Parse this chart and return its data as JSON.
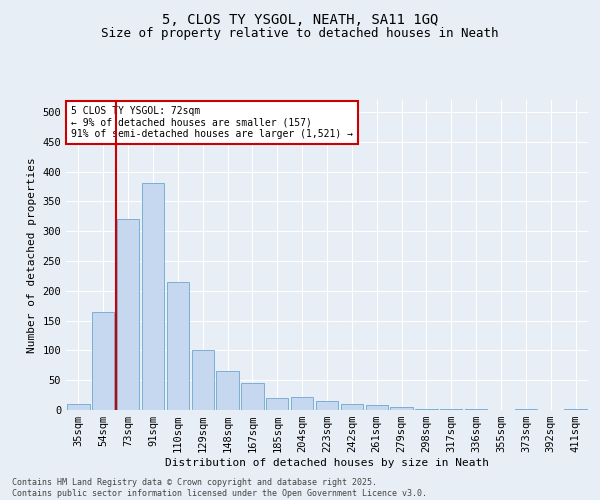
{
  "title_line1": "5, CLOS TY YSGOL, NEATH, SA11 1GQ",
  "title_line2": "Size of property relative to detached houses in Neath",
  "xlabel": "Distribution of detached houses by size in Neath",
  "ylabel": "Number of detached properties",
  "categories": [
    "35sqm",
    "54sqm",
    "73sqm",
    "91sqm",
    "110sqm",
    "129sqm",
    "148sqm",
    "167sqm",
    "185sqm",
    "204sqm",
    "223sqm",
    "242sqm",
    "261sqm",
    "279sqm",
    "298sqm",
    "317sqm",
    "336sqm",
    "355sqm",
    "373sqm",
    "392sqm",
    "411sqm"
  ],
  "values": [
    10,
    165,
    320,
    380,
    215,
    100,
    65,
    45,
    20,
    22,
    15,
    10,
    8,
    5,
    2,
    2,
    1,
    0,
    1,
    0,
    1
  ],
  "bar_color": "#c5d8ef",
  "bar_edge_color": "#7aafd4",
  "vline_x_index": 2,
  "vline_color": "#cc0000",
  "annotation_text": "5 CLOS TY YSGOL: 72sqm\n← 9% of detached houses are smaller (157)\n91% of semi-detached houses are larger (1,521) →",
  "annotation_box_color": "#ffffff",
  "annotation_border_color": "#cc0000",
  "footer_text": "Contains HM Land Registry data © Crown copyright and database right 2025.\nContains public sector information licensed under the Open Government Licence v3.0.",
  "ylim": [
    0,
    520
  ],
  "yticks": [
    0,
    50,
    100,
    150,
    200,
    250,
    300,
    350,
    400,
    450,
    500
  ],
  "background_color": "#e8eef5",
  "grid_color": "#ffffff",
  "title_fontsize": 10,
  "subtitle_fontsize": 9,
  "xlabel_fontsize": 8,
  "ylabel_fontsize": 8,
  "tick_fontsize": 7.5,
  "annotation_fontsize": 7,
  "footer_fontsize": 6
}
